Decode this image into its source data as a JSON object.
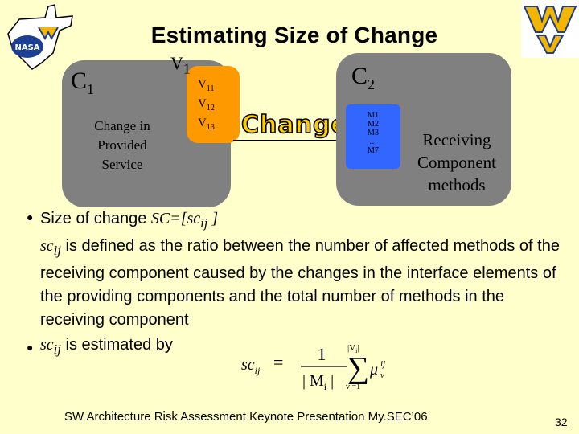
{
  "title": "Estimating Size of Change",
  "logos": {
    "top_left": "nasa-west-virginia-logo",
    "top_right": "wv-flying-logo"
  },
  "components": {
    "c1": {
      "label": "C",
      "sub": "1",
      "description": [
        "Change in",
        "Provided",
        "Service"
      ]
    },
    "v1": {
      "label": "V",
      "sub": "1",
      "items": [
        {
          "base": "V",
          "sub": "11"
        },
        {
          "base": "V",
          "sub": "12"
        },
        {
          "base": "V",
          "sub": "13"
        }
      ]
    },
    "c2": {
      "label": "C",
      "sub": "2",
      "methods": [
        "M1",
        "M2",
        "M3",
        "…",
        "M7"
      ]
    },
    "change_label": "Change",
    "receiving_label": [
      "Receiving",
      "Component",
      "methods"
    ]
  },
  "bullets": {
    "b1_prefix": "Size of change ",
    "b1_sc": "SC=[sc",
    "b1_sc_sub": "ij",
    "b1_sc_close": " ]",
    "b1_sc2": "sc",
    "b1_sc2_sub": "ij",
    "b1_text": " is defined as the ratio between the number of affected methods of the receiving component caused by the changes in the interface elements of the providing components and the total number of methods in the receiving component",
    "b2_sc": "sc",
    "b2_sc_sub": "ij",
    "b2_text": " is estimated by"
  },
  "formula": {
    "lhs": "sc",
    "lhs_sub": "ij",
    "numer": "1",
    "denom": "| M",
    "denom_sub": "i",
    "denom_close": " |",
    "sum_top": "|V",
    "sum_top_sub": "i",
    "sum_top_close": "|",
    "sum_bottom": "v =1",
    "mu": "μ",
    "mu_sup": "ij",
    "mu_sub": "v"
  },
  "footer": "SW Architecture Risk Assessment Keynote Presentation My.SEC’06",
  "page_number": "32",
  "colors": {
    "background": "#ffffcc",
    "component_box": "#808080",
    "v1_box": "#ff9900",
    "methods_box": "#3366ff",
    "change_text": "#ffcc00"
  }
}
